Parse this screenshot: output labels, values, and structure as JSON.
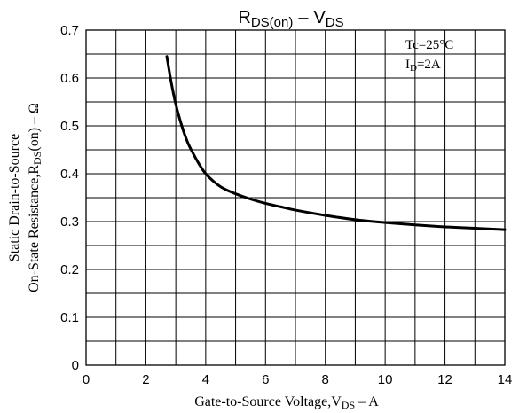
{
  "chart_data": {
    "type": "line",
    "title": {
      "main": "R",
      "main_sub": "DS(on)",
      "sep": "–",
      "main2": "V",
      "main2_sub": "DS"
    },
    "conditions": [
      {
        "main": "Tc=25°C",
        "sub": "",
        "tail": ""
      },
      {
        "main": "I",
        "sub": "D",
        "tail": "=2A"
      }
    ],
    "xlabel": {
      "pre": "Gate-to-Source Voltage,V",
      "sub": "DS",
      "post": " – A"
    },
    "ylabel": {
      "line1": "Static Drain-to-Source",
      "line2_pre": "On-State Resistance,R",
      "line2_sub": "DS",
      "line2_post": "(on) – Ω"
    },
    "x_ticks": [
      "0",
      "2",
      "4",
      "6",
      "8",
      "10",
      "12",
      "14"
    ],
    "y_ticks": [
      "0",
      "0.1",
      "0.2",
      "0.3",
      "0.4",
      "0.5",
      "0.6",
      "0.7"
    ],
    "xlim": [
      0,
      14
    ],
    "ylim": [
      0,
      0.7
    ],
    "x_step": 1,
    "y_step": 0.05,
    "grid": true,
    "series": [
      {
        "color": "#000000",
        "x": [
          2.7,
          2.85,
          3.0,
          3.2,
          3.4,
          3.6,
          3.8,
          4.0,
          4.3,
          4.6,
          5.0,
          5.5,
          6.0,
          6.5,
          7.0,
          8.0,
          9.0,
          10.0,
          11.0,
          12.0,
          13.0,
          14.0
        ],
        "y": [
          0.645,
          0.59,
          0.545,
          0.5,
          0.465,
          0.44,
          0.418,
          0.4,
          0.382,
          0.369,
          0.358,
          0.347,
          0.338,
          0.331,
          0.324,
          0.313,
          0.304,
          0.298,
          0.293,
          0.289,
          0.286,
          0.283
        ]
      }
    ]
  }
}
